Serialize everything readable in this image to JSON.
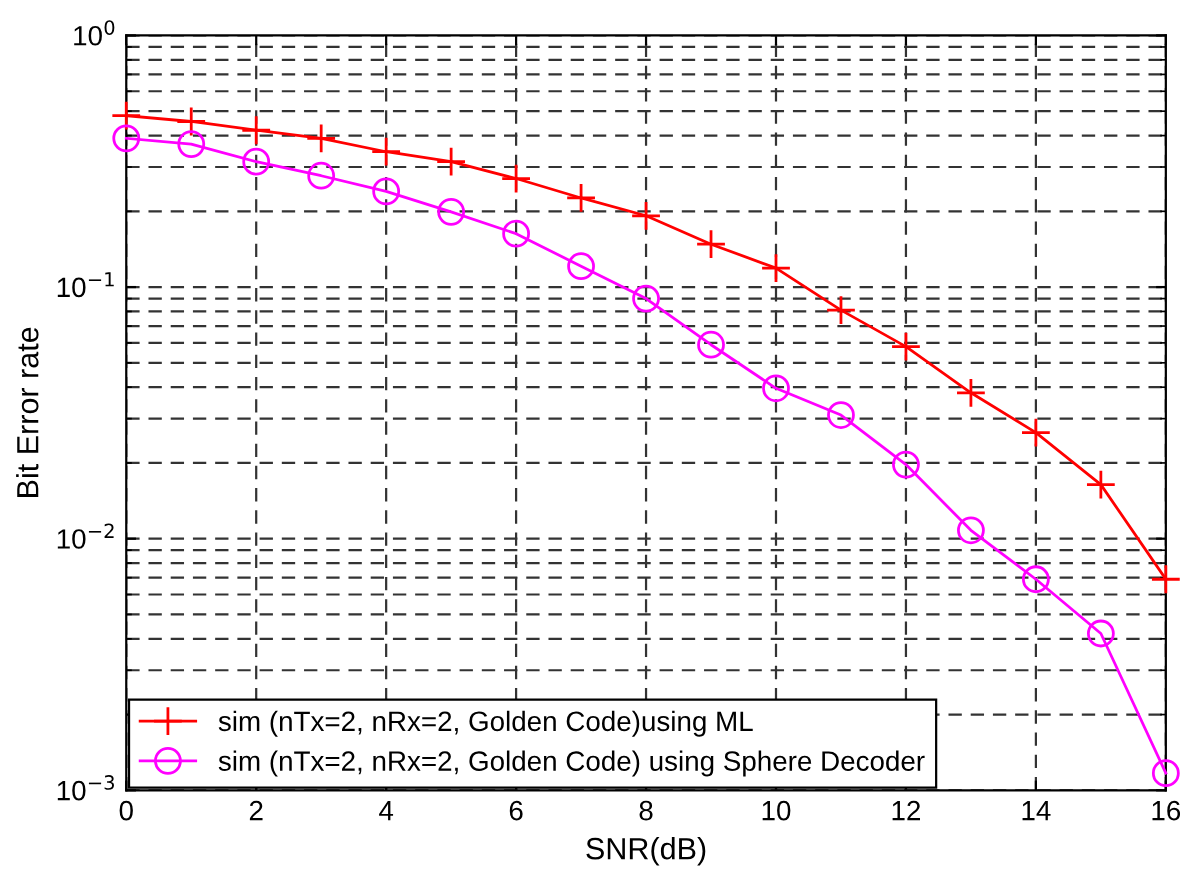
{
  "chart_data": {
    "type": "line",
    "xlabel": "SNR(dB)",
    "ylabel": "Bit Error rate",
    "x": [
      0,
      1,
      2,
      3,
      4,
      5,
      6,
      7,
      8,
      9,
      10,
      11,
      12,
      13,
      14,
      15,
      16
    ],
    "series": [
      {
        "name": "sim (nTx=2, nRx=2, Golden Code)using ML",
        "color": "#ff0000",
        "marker": "cross",
        "values": [
          0.48,
          0.455,
          0.42,
          0.39,
          0.345,
          0.315,
          0.27,
          0.226,
          0.192,
          0.148,
          0.119,
          0.081,
          0.058,
          0.038,
          0.0264,
          0.0164,
          0.0069
        ]
      },
      {
        "name": "sim (nTx=2, nRx=2, Golden Code) using Sphere Decoder",
        "color": "#ff00ff",
        "marker": "circle",
        "values": [
          0.39,
          0.37,
          0.315,
          0.277,
          0.24,
          0.199,
          0.163,
          0.121,
          0.09,
          0.059,
          0.0396,
          0.031,
          0.0197,
          0.0108,
          0.0069,
          0.0042,
          0.00117
        ]
      }
    ],
    "log": "y",
    "xlim": [
      0,
      16
    ],
    "xticks": [
      0,
      2,
      4,
      6,
      8,
      10,
      12,
      14,
      16
    ],
    "ylim": [
      0.001,
      1
    ],
    "yticks": [
      {
        "value": 0.001,
        "label": "10$^{−3}$"
      },
      {
        "value": 0.01,
        "label": "10$^{−2}$"
      },
      {
        "value": 0.1,
        "label": "10$^{−1}$"
      },
      {
        "value": 1,
        "label": "10$^{0}$"
      }
    ],
    "grid": true,
    "legend": "lower left",
    "line_style": "solid"
  }
}
